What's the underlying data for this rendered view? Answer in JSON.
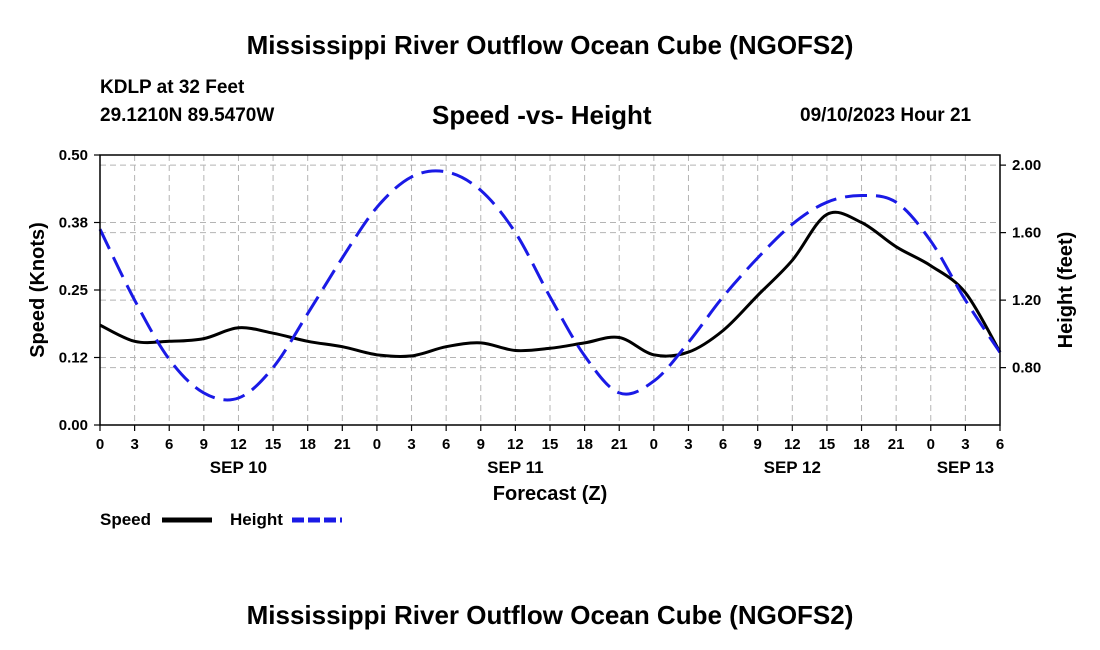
{
  "header": {
    "title": "Mississippi River Outflow Ocean Cube (NGOFS2)",
    "station": "KDLP at 32 Feet",
    "coordinates": "29.1210N  89.5470W",
    "datetime": "09/10/2023 Hour 21"
  },
  "footer": {
    "title": "Mississippi River Outflow Ocean Cube (NGOFS2)"
  },
  "chart_data": {
    "type": "line",
    "title": "Speed -vs- Height",
    "xlabel": "Forecast (Z)",
    "ylabel_left": "Speed (Knots)",
    "ylabel_right": "Height (feet)",
    "x_range_hours": [
      0,
      78
    ],
    "x_tick_labels": [
      "0",
      "3",
      "6",
      "9",
      "12",
      "15",
      "18",
      "21",
      "0",
      "3",
      "6",
      "9",
      "12",
      "15",
      "18",
      "21",
      "0",
      "3",
      "6",
      "9",
      "12",
      "15",
      "18",
      "21",
      "0",
      "3",
      "6"
    ],
    "day_labels": [
      {
        "label": "SEP 10",
        "hour": 12
      },
      {
        "label": "SEP 11",
        "hour": 36
      },
      {
        "label": "SEP 12",
        "hour": 60
      },
      {
        "label": "SEP 13",
        "hour": 75
      }
    ],
    "y_left": {
      "range": [
        0,
        0.5
      ],
      "ticks": [
        0.0,
        0.125,
        0.25,
        0.375,
        0.5
      ],
      "tick_labels": [
        "0.00",
        "0.12",
        "0.25",
        "0.38",
        "0.50"
      ]
    },
    "y_right": {
      "range": [
        0.46,
        2.06
      ],
      "ticks": [
        0.8,
        1.2,
        1.6,
        2.0
      ],
      "tick_labels": [
        "0.80",
        "1.20",
        "1.60",
        "2.00"
      ]
    },
    "grid": true,
    "legend": "bottom-left",
    "series": [
      {
        "name": "Speed",
        "axis": "left",
        "color": "#000000",
        "style": "solid",
        "hours": [
          0,
          3,
          6,
          9,
          12,
          15,
          18,
          21,
          24,
          27,
          30,
          33,
          36,
          39,
          42,
          45,
          48,
          51,
          54,
          57,
          60,
          63,
          66,
          69,
          72,
          75,
          78
        ],
        "values": [
          0.185,
          0.155,
          0.155,
          0.16,
          0.18,
          0.17,
          0.155,
          0.145,
          0.13,
          0.128,
          0.145,
          0.152,
          0.138,
          0.142,
          0.152,
          0.162,
          0.13,
          0.135,
          0.175,
          0.24,
          0.305,
          0.39,
          0.375,
          0.33,
          0.295,
          0.245,
          0.135
        ]
      },
      {
        "name": "Height",
        "axis": "right",
        "color": "#1a1ae6",
        "style": "dashed",
        "hours": [
          0,
          3,
          6,
          9,
          12,
          15,
          18,
          21,
          24,
          27,
          30,
          33,
          36,
          39,
          42,
          45,
          48,
          51,
          54,
          57,
          60,
          63,
          66,
          69,
          72,
          75,
          78
        ],
        "values": [
          1.62,
          1.2,
          0.85,
          0.65,
          0.62,
          0.8,
          1.12,
          1.45,
          1.75,
          1.93,
          1.96,
          1.85,
          1.6,
          1.22,
          0.87,
          0.65,
          0.72,
          0.95,
          1.22,
          1.45,
          1.65,
          1.78,
          1.82,
          1.78,
          1.55,
          1.2,
          0.89
        ]
      }
    ]
  }
}
